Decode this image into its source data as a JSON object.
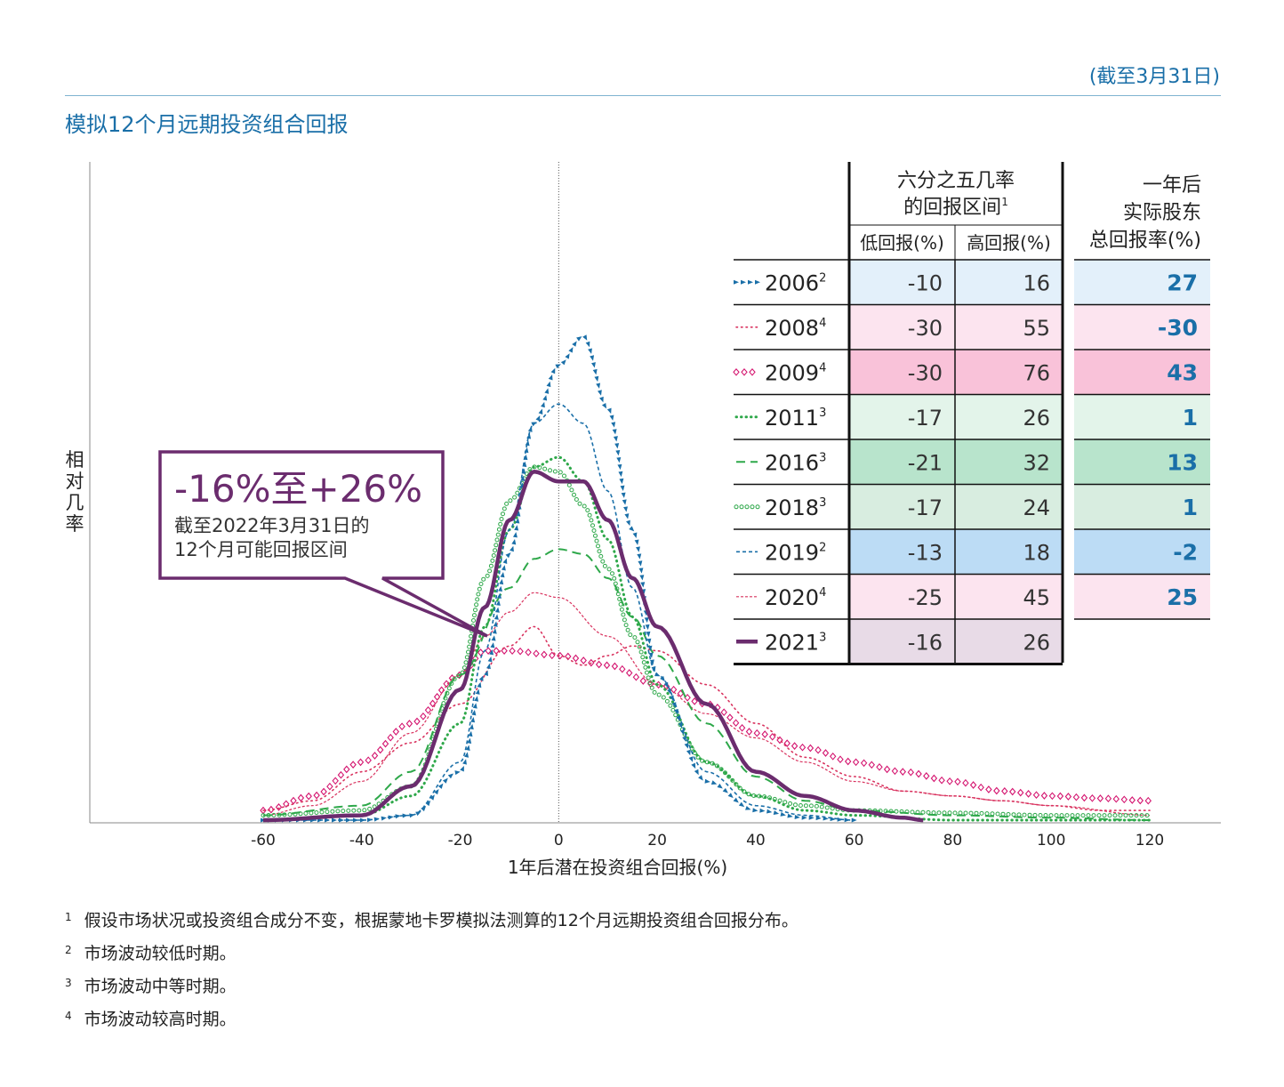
{
  "header": {
    "date_note": "(截至3月31日)",
    "title": "模拟12个月远期投资组合回报"
  },
  "callout": {
    "range": "-16%至+26%",
    "line1": "截至2022年3月31日的",
    "line2": "12个月可能回报区间"
  },
  "table": {
    "range_header_line1": "六分之五几率",
    "range_header_line2": "的回报区间",
    "range_header_sup": "1",
    "low_header": "低回报(%)",
    "high_header": "高回报(%)",
    "actual_header_line1": "一年后",
    "actual_header_line2": "实际股东",
    "actual_header_line3": "总回报率(%)"
  },
  "colors": {
    "blue": "#1a6fa8",
    "red": "#d9335f",
    "magenta": "#d4136e",
    "green": "#2ea84a",
    "purple": "#6b2c6e"
  },
  "chart_data": {
    "type": "line",
    "title": "",
    "xlabel": "1年后潜在投资组合回报(%)",
    "ylabel": "相对几率",
    "xlim": [
      -60,
      120
    ],
    "xticks": [
      -60,
      -40,
      -20,
      0,
      20,
      40,
      60,
      80,
      100,
      120
    ],
    "grid": false,
    "legend_position": "top-right table",
    "series": [
      {
        "name": "2006",
        "sup": "2",
        "low": "-10",
        "high": "16",
        "actual": "27",
        "style": "triangles",
        "color": "#1a6fa8",
        "row_color": "#e3f0fa",
        "x": [
          -60,
          -40,
          -30,
          -20,
          -15,
          -10,
          -5,
          0,
          5,
          10,
          15,
          20,
          30,
          40,
          50,
          60
        ],
        "y": [
          0,
          0,
          0.01,
          0.1,
          0.3,
          0.55,
          0.82,
          0.94,
          1.0,
          0.85,
          0.6,
          0.3,
          0.08,
          0.02,
          0.005,
          0
        ]
      },
      {
        "name": "2008",
        "sup": "4",
        "low": "-30",
        "high": "55",
        "actual": "-30",
        "style": "dots",
        "color": "#d9335f",
        "row_color": "#fce4ef",
        "x": [
          -60,
          -50,
          -40,
          -30,
          -20,
          -10,
          -5,
          0,
          5,
          10,
          15,
          20,
          30,
          40,
          50,
          60,
          70,
          80,
          90,
          100,
          110,
          120
        ],
        "y": [
          0.02,
          0.04,
          0.1,
          0.16,
          0.24,
          0.36,
          0.4,
          0.34,
          0.32,
          0.34,
          0.36,
          0.35,
          0.28,
          0.2,
          0.13,
          0.09,
          0.06,
          0.05,
          0.04,
          0.03,
          0.02,
          0.02
        ]
      },
      {
        "name": "2009",
        "sup": "4",
        "low": "-30",
        "high": "76",
        "actual": "43",
        "style": "diamonds",
        "color": "#d4136e",
        "row_color": "#f9c2d9",
        "x": [
          -60,
          -50,
          -40,
          -30,
          -20,
          -15,
          -10,
          0,
          10,
          20,
          30,
          40,
          50,
          60,
          70,
          80,
          90,
          100,
          110,
          120
        ],
        "y": [
          0.02,
          0.05,
          0.12,
          0.2,
          0.3,
          0.35,
          0.35,
          0.34,
          0.32,
          0.28,
          0.24,
          0.18,
          0.15,
          0.12,
          0.1,
          0.08,
          0.06,
          0.05,
          0.045,
          0.04
        ]
      },
      {
        "name": "2011",
        "sup": "3",
        "low": "-17",
        "high": "26",
        "actual": "1",
        "style": "smalldots",
        "color": "#2ea84a",
        "row_color": "#e3f4ea",
        "x": [
          -60,
          -40,
          -30,
          -20,
          -15,
          -10,
          -5,
          0,
          5,
          10,
          15,
          20,
          30,
          40,
          50,
          60,
          80,
          120
        ],
        "y": [
          0,
          0.01,
          0.05,
          0.2,
          0.4,
          0.6,
          0.73,
          0.75,
          0.7,
          0.58,
          0.42,
          0.28,
          0.12,
          0.05,
          0.02,
          0.01,
          0,
          0
        ]
      },
      {
        "name": "2016",
        "sup": "3",
        "low": "-21",
        "high": "32",
        "actual": "13",
        "style": "dashes",
        "color": "#2ea84a",
        "row_color": "#b8e4cc",
        "x": [
          -60,
          -40,
          -30,
          -20,
          -10,
          -5,
          0,
          5,
          10,
          15,
          20,
          30,
          40,
          50,
          60,
          80,
          100,
          120
        ],
        "y": [
          0.01,
          0.03,
          0.1,
          0.3,
          0.48,
          0.54,
          0.56,
          0.55,
          0.5,
          0.42,
          0.34,
          0.2,
          0.09,
          0.04,
          0.02,
          0.01,
          0.005,
          0
        ]
      },
      {
        "name": "2018",
        "sup": "3",
        "low": "-17",
        "high": "24",
        "actual": "1",
        "style": "circles",
        "color": "#2ea84a",
        "row_color": "#d8ede0",
        "x": [
          -60,
          -40,
          -30,
          -20,
          -15,
          -10,
          -5,
          0,
          5,
          10,
          15,
          20,
          30,
          40,
          50,
          60,
          80,
          100,
          120
        ],
        "y": [
          0.01,
          0.02,
          0.07,
          0.3,
          0.5,
          0.66,
          0.73,
          0.72,
          0.65,
          0.52,
          0.38,
          0.26,
          0.12,
          0.05,
          0.03,
          0.02,
          0.015,
          0.01,
          0.01
        ]
      },
      {
        "name": "2019",
        "sup": "2",
        "low": "-13",
        "high": "18",
        "actual": "-2",
        "style": "finedash",
        "color": "#1a6fa8",
        "row_color": "#bcdcf5",
        "x": [
          -60,
          -40,
          -30,
          -20,
          -15,
          -10,
          -5,
          0,
          5,
          10,
          15,
          20,
          30,
          40,
          50,
          60
        ],
        "y": [
          0,
          0,
          0.01,
          0.12,
          0.35,
          0.6,
          0.82,
          0.86,
          0.82,
          0.68,
          0.48,
          0.3,
          0.1,
          0.03,
          0.01,
          0
        ]
      },
      {
        "name": "2020",
        "sup": "4",
        "low": "-25",
        "high": "45",
        "actual": "25",
        "style": "zigzag",
        "color": "#d9335f",
        "row_color": "#fce4ef",
        "x": [
          -60,
          -50,
          -40,
          -30,
          -20,
          -15,
          -10,
          -5,
          0,
          10,
          20,
          30,
          40,
          50,
          60,
          70,
          80,
          90,
          100,
          120
        ],
        "y": [
          0.01,
          0.03,
          0.08,
          0.18,
          0.3,
          0.38,
          0.43,
          0.47,
          0.46,
          0.38,
          0.28,
          0.22,
          0.17,
          0.12,
          0.08,
          0.06,
          0.05,
          0.04,
          0.03,
          0.01
        ]
      },
      {
        "name": "2021",
        "sup": "3",
        "low": "-16",
        "high": "26",
        "actual": "",
        "style": "solid",
        "color": "#6b2c6e",
        "row_color": "#e8dbe7",
        "x": [
          -60,
          -40,
          -30,
          -20,
          -15,
          -10,
          -5,
          0,
          5,
          10,
          15,
          20,
          30,
          40,
          50,
          60,
          70,
          74
        ],
        "y": [
          0,
          0.01,
          0.07,
          0.27,
          0.44,
          0.62,
          0.72,
          0.7,
          0.7,
          0.62,
          0.5,
          0.4,
          0.24,
          0.1,
          0.05,
          0.02,
          0.005,
          0
        ]
      }
    ]
  },
  "footnotes": [
    {
      "num": "1",
      "text": "假设市场状况或投资组合成分不变，根据蒙地卡罗模拟法测算的12个月远期投资组合回报分布。"
    },
    {
      "num": "2",
      "text": "市场波动较低时期。"
    },
    {
      "num": "3",
      "text": "市场波动中等时期。"
    },
    {
      "num": "4",
      "text": "市场波动较高时期。"
    }
  ]
}
